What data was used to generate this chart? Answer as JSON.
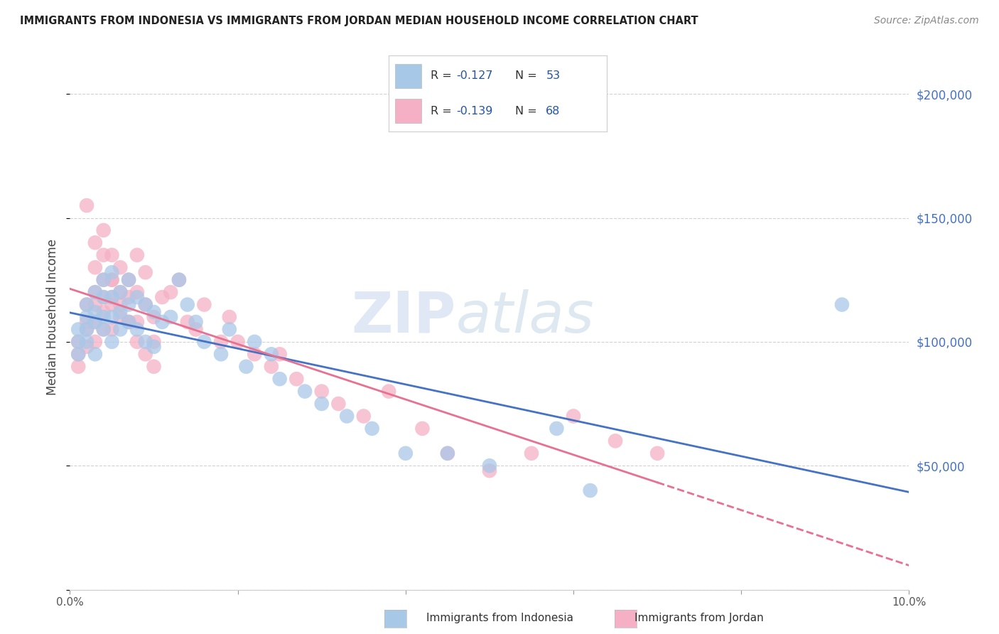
{
  "title": "IMMIGRANTS FROM INDONESIA VS IMMIGRANTS FROM JORDAN MEDIAN HOUSEHOLD INCOME CORRELATION CHART",
  "source": "Source: ZipAtlas.com",
  "ylabel": "Median Household Income",
  "xlim": [
    0,
    0.1
  ],
  "ylim": [
    0,
    220000
  ],
  "color_indonesia": "#a8c8e8",
  "color_jordan": "#f5b0c5",
  "line_color_indonesia": "#4472c4",
  "line_color_jordan": "#e87090",
  "background_color": "#ffffff",
  "watermark": "ZIPatlas",
  "legend_r1_label": "R = ",
  "legend_r1_val": "-0.127",
  "legend_n1_label": "  N = ",
  "legend_n1_val": "53",
  "legend_r2_label": "R = ",
  "legend_r2_val": "-0.139",
  "legend_n2_label": "  N = ",
  "legend_n2_val": "68",
  "indo_label": "Immigrants from Indonesia",
  "jordan_label": "Immigrants from Jordan",
  "indonesia_x": [
    0.001,
    0.001,
    0.001,
    0.002,
    0.002,
    0.002,
    0.002,
    0.003,
    0.003,
    0.003,
    0.003,
    0.004,
    0.004,
    0.004,
    0.004,
    0.005,
    0.005,
    0.005,
    0.005,
    0.006,
    0.006,
    0.006,
    0.007,
    0.007,
    0.007,
    0.008,
    0.008,
    0.009,
    0.009,
    0.01,
    0.01,
    0.011,
    0.012,
    0.013,
    0.014,
    0.015,
    0.016,
    0.018,
    0.019,
    0.021,
    0.022,
    0.024,
    0.025,
    0.028,
    0.03,
    0.033,
    0.036,
    0.04,
    0.045,
    0.05,
    0.058,
    0.062,
    0.092
  ],
  "indonesia_y": [
    105000,
    100000,
    95000,
    115000,
    110000,
    105000,
    100000,
    120000,
    112000,
    108000,
    95000,
    125000,
    118000,
    110000,
    105000,
    128000,
    118000,
    110000,
    100000,
    120000,
    112000,
    105000,
    125000,
    115000,
    108000,
    118000,
    105000,
    115000,
    100000,
    112000,
    98000,
    108000,
    110000,
    125000,
    115000,
    108000,
    100000,
    95000,
    105000,
    90000,
    100000,
    95000,
    85000,
    80000,
    75000,
    70000,
    65000,
    55000,
    55000,
    50000,
    65000,
    40000,
    115000
  ],
  "jordan_x": [
    0.001,
    0.001,
    0.001,
    0.002,
    0.002,
    0.002,
    0.002,
    0.003,
    0.003,
    0.003,
    0.003,
    0.004,
    0.004,
    0.004,
    0.004,
    0.005,
    0.005,
    0.005,
    0.005,
    0.006,
    0.006,
    0.006,
    0.007,
    0.007,
    0.007,
    0.008,
    0.008,
    0.008,
    0.009,
    0.009,
    0.01,
    0.01,
    0.011,
    0.012,
    0.013,
    0.014,
    0.015,
    0.016,
    0.018,
    0.019,
    0.02,
    0.022,
    0.024,
    0.025,
    0.027,
    0.03,
    0.032,
    0.035,
    0.038,
    0.042,
    0.045,
    0.05,
    0.055,
    0.06,
    0.065,
    0.07,
    0.002,
    0.003,
    0.003,
    0.004,
    0.004,
    0.005,
    0.005,
    0.006,
    0.007,
    0.008,
    0.009,
    0.01
  ],
  "jordan_y": [
    100000,
    95000,
    90000,
    115000,
    108000,
    105000,
    98000,
    120000,
    115000,
    108000,
    100000,
    125000,
    118000,
    112000,
    105000,
    135000,
    125000,
    115000,
    105000,
    130000,
    120000,
    110000,
    125000,
    118000,
    108000,
    135000,
    120000,
    108000,
    128000,
    115000,
    110000,
    100000,
    118000,
    120000,
    125000,
    108000,
    105000,
    115000,
    100000,
    110000,
    100000,
    95000,
    90000,
    95000,
    85000,
    80000,
    75000,
    70000,
    80000,
    65000,
    55000,
    48000,
    55000,
    70000,
    60000,
    55000,
    155000,
    140000,
    130000,
    145000,
    135000,
    125000,
    118000,
    115000,
    108000,
    100000,
    95000,
    90000
  ]
}
